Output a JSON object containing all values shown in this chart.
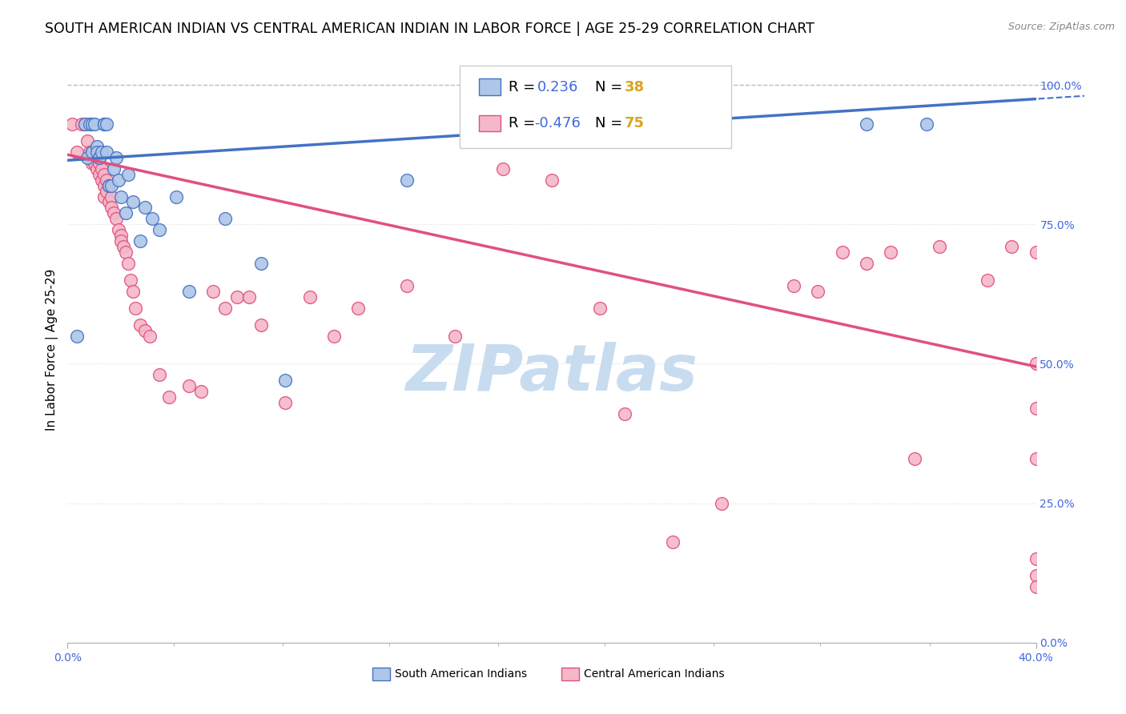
{
  "title": "SOUTH AMERICAN INDIAN VS CENTRAL AMERICAN INDIAN IN LABOR FORCE | AGE 25-29 CORRELATION CHART",
  "source": "Source: ZipAtlas.com",
  "ylabel": "In Labor Force | Age 25-29",
  "xlim": [
    0.0,
    0.4
  ],
  "ylim": [
    0.0,
    1.05
  ],
  "ytick_values": [
    0.0,
    0.25,
    0.5,
    0.75,
    1.0
  ],
  "ytick_labels": [
    "0.0%",
    "25.0%",
    "50.0%",
    "75.0%",
    "100.0%"
  ],
  "xtick_major": [
    0.0,
    0.4
  ],
  "xtick_major_labels": [
    "0.0%",
    "40.0%"
  ],
  "xtick_minor": [
    0.044,
    0.089,
    0.133,
    0.178,
    0.222,
    0.267,
    0.311,
    0.356
  ],
  "blue_R": 0.236,
  "blue_N": 38,
  "pink_R": -0.476,
  "pink_N": 75,
  "blue_scatter_x": [
    0.004,
    0.007,
    0.008,
    0.009,
    0.01,
    0.01,
    0.011,
    0.012,
    0.012,
    0.013,
    0.013,
    0.014,
    0.015,
    0.015,
    0.016,
    0.016,
    0.017,
    0.018,
    0.019,
    0.02,
    0.021,
    0.022,
    0.024,
    0.025,
    0.027,
    0.03,
    0.032,
    0.035,
    0.038,
    0.045,
    0.05,
    0.065,
    0.08,
    0.09,
    0.14,
    0.22,
    0.33,
    0.355
  ],
  "blue_scatter_y": [
    0.55,
    0.93,
    0.87,
    0.93,
    0.93,
    0.88,
    0.93,
    0.89,
    0.88,
    0.87,
    0.87,
    0.88,
    0.93,
    0.93,
    0.93,
    0.88,
    0.82,
    0.82,
    0.85,
    0.87,
    0.83,
    0.8,
    0.77,
    0.84,
    0.79,
    0.72,
    0.78,
    0.76,
    0.74,
    0.8,
    0.63,
    0.76,
    0.68,
    0.47,
    0.83,
    0.93,
    0.93,
    0.93
  ],
  "pink_scatter_x": [
    0.002,
    0.004,
    0.006,
    0.007,
    0.008,
    0.009,
    0.01,
    0.01,
    0.011,
    0.012,
    0.012,
    0.013,
    0.013,
    0.014,
    0.014,
    0.015,
    0.015,
    0.015,
    0.016,
    0.016,
    0.017,
    0.017,
    0.018,
    0.018,
    0.019,
    0.02,
    0.021,
    0.022,
    0.022,
    0.023,
    0.024,
    0.025,
    0.026,
    0.027,
    0.028,
    0.03,
    0.032,
    0.034,
    0.038,
    0.042,
    0.05,
    0.055,
    0.06,
    0.065,
    0.07,
    0.075,
    0.08,
    0.09,
    0.1,
    0.11,
    0.12,
    0.14,
    0.16,
    0.18,
    0.2,
    0.22,
    0.23,
    0.25,
    0.27,
    0.3,
    0.31,
    0.32,
    0.33,
    0.34,
    0.35,
    0.36,
    0.38,
    0.39,
    0.4,
    0.4,
    0.4,
    0.4,
    0.4,
    0.4,
    0.4
  ],
  "pink_scatter_y": [
    0.93,
    0.88,
    0.93,
    0.93,
    0.9,
    0.88,
    0.88,
    0.86,
    0.86,
    0.87,
    0.85,
    0.86,
    0.84,
    0.85,
    0.83,
    0.84,
    0.82,
    0.8,
    0.83,
    0.81,
    0.82,
    0.79,
    0.8,
    0.78,
    0.77,
    0.76,
    0.74,
    0.73,
    0.72,
    0.71,
    0.7,
    0.68,
    0.65,
    0.63,
    0.6,
    0.57,
    0.56,
    0.55,
    0.48,
    0.44,
    0.46,
    0.45,
    0.63,
    0.6,
    0.62,
    0.62,
    0.57,
    0.43,
    0.62,
    0.55,
    0.6,
    0.64,
    0.55,
    0.85,
    0.83,
    0.6,
    0.41,
    0.18,
    0.25,
    0.64,
    0.63,
    0.7,
    0.68,
    0.7,
    0.33,
    0.71,
    0.65,
    0.71,
    0.12,
    0.15,
    0.1,
    0.33,
    0.42,
    0.5,
    0.7
  ],
  "blue_line_color": "#4472C4",
  "pink_line_color": "#E05080",
  "blue_scatter_color": "#AEC6E8",
  "pink_scatter_color": "#F4B8C8",
  "blue_trend_x0": 0.0,
  "blue_trend_x1": 0.4,
  "blue_trend_y0": 0.865,
  "blue_trend_y1": 0.975,
  "pink_trend_x0": 0.0,
  "pink_trend_x1": 0.4,
  "pink_trend_y0": 0.875,
  "pink_trend_y1": 0.495,
  "dashed_line_color": "#BBBBBB",
  "grid_color": "#DDDDDD",
  "background_color": "#FFFFFF",
  "watermark_text": "ZIPatlas",
  "watermark_color": "#C8DCF0",
  "title_fontsize": 12.5,
  "source_fontsize": 9,
  "tick_fontsize": 10,
  "tick_color": "#4169E1",
  "ylabel_fontsize": 11,
  "legend_fontsize": 13,
  "legend_R_color": "#4169E1",
  "legend_N_color": "#DAA520",
  "bottom_legend_label1": "South American Indians",
  "bottom_legend_label2": "Central American Indians"
}
